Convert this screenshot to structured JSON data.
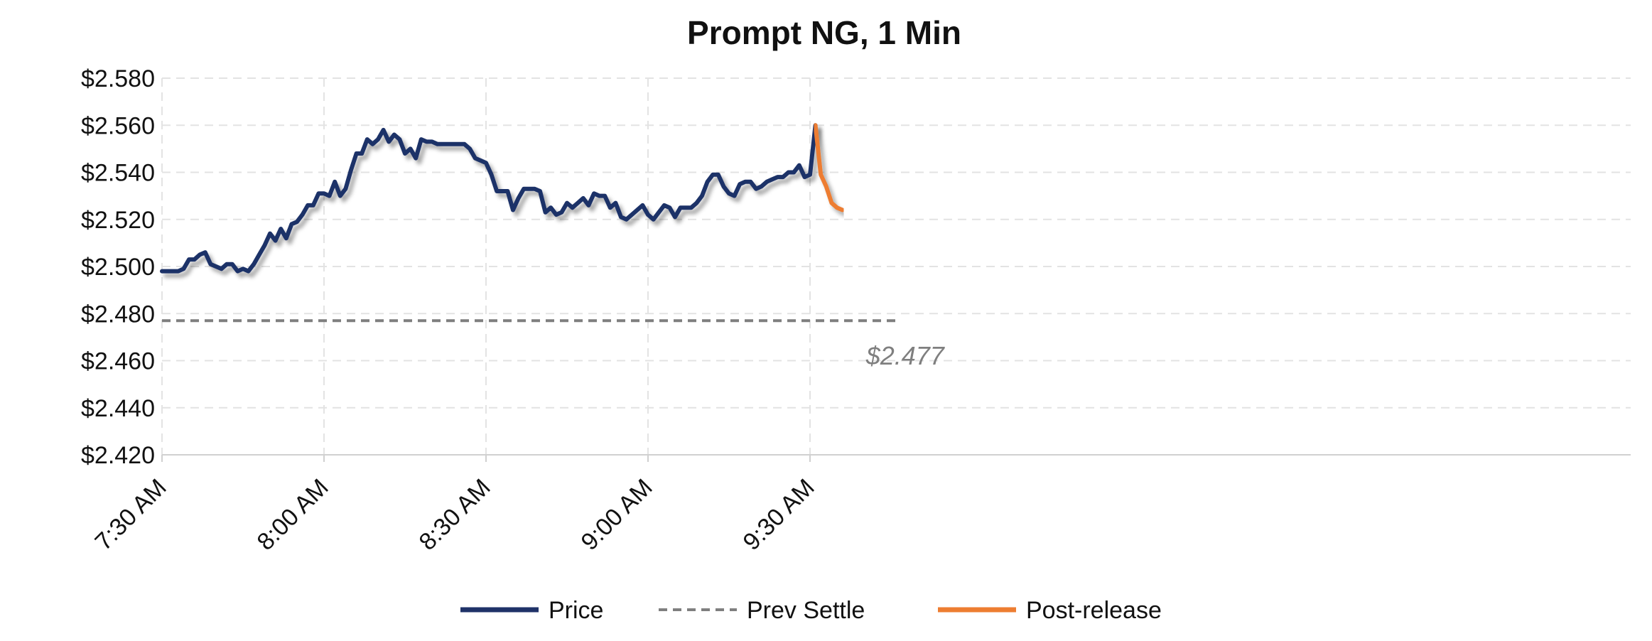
{
  "chart_data": {
    "type": "line",
    "title": "Prompt NG, 1 Min",
    "xlabel": "",
    "ylabel": "",
    "ylim": [
      2.42,
      2.58
    ],
    "xlim_minutes_from_first_tick": [
      0,
      136
    ],
    "y_ticks": [
      "$2.580",
      "$2.560",
      "$2.540",
      "$2.520",
      "$2.500",
      "$2.480",
      "$2.460",
      "$2.440",
      "$2.420"
    ],
    "y_tick_values": [
      2.58,
      2.56,
      2.54,
      2.52,
      2.5,
      2.48,
      2.46,
      2.44,
      2.42
    ],
    "x_ticks": [
      "7:30 AM",
      "8:00 AM",
      "8:30 AM",
      "9:00 AM",
      "9:30 AM"
    ],
    "x_tick_minutes": [
      0,
      30,
      60,
      90,
      120
    ],
    "grid": true,
    "legend_position": "bottom",
    "series": [
      {
        "name": "Price",
        "color": "#1f3268",
        "style": "solid",
        "x": [
          0,
          1,
          2,
          3,
          4,
          5,
          6,
          7,
          8,
          9,
          10,
          11,
          12,
          13,
          14,
          15,
          16,
          17,
          18,
          19,
          20,
          21,
          22,
          23,
          24,
          25,
          26,
          27,
          28,
          29,
          30,
          31,
          32,
          33,
          34,
          35,
          36,
          37,
          38,
          39,
          40,
          41,
          42,
          43,
          44,
          45,
          46,
          47,
          48,
          49,
          50,
          51,
          52,
          53,
          54,
          55,
          56,
          57,
          58,
          59,
          60,
          61,
          62,
          63,
          64,
          65,
          66,
          67,
          68,
          69,
          70,
          71,
          72,
          73,
          74,
          75,
          76,
          77,
          78,
          79,
          80,
          81,
          82,
          83,
          84,
          85,
          86,
          87,
          88,
          89,
          90,
          91,
          92,
          93,
          94,
          95,
          96,
          97,
          98,
          99,
          100,
          101,
          102,
          103,
          104,
          105,
          106,
          107,
          108,
          109,
          110,
          111,
          112,
          113,
          114,
          115,
          116,
          117,
          118,
          119,
          120,
          121
        ],
        "values": [
          2.498,
          2.498,
          2.498,
          2.498,
          2.499,
          2.503,
          2.503,
          2.505,
          2.506,
          2.501,
          2.5,
          2.499,
          2.501,
          2.501,
          2.498,
          2.499,
          2.498,
          2.501,
          2.505,
          2.509,
          2.514,
          2.511,
          2.516,
          2.512,
          2.518,
          2.519,
          2.522,
          2.526,
          2.526,
          2.531,
          2.531,
          2.53,
          2.536,
          2.53,
          2.533,
          2.541,
          2.548,
          2.548,
          2.554,
          2.552,
          2.554,
          2.558,
          2.553,
          2.556,
          2.554,
          2.548,
          2.55,
          2.546,
          2.554,
          2.553,
          2.553,
          2.552,
          2.552,
          2.552,
          2.552,
          2.552,
          2.552,
          2.55,
          2.546,
          2.545,
          2.544,
          2.539,
          2.532,
          2.532,
          2.532,
          2.524,
          2.529,
          2.533,
          2.533,
          2.533,
          2.532,
          2.523,
          2.525,
          2.522,
          2.523,
          2.527,
          2.525,
          2.527,
          2.529,
          2.526,
          2.531,
          2.53,
          2.53,
          2.525,
          2.527,
          2.521,
          2.52,
          2.522,
          2.524,
          2.526,
          2.522,
          2.52,
          2.523,
          2.526,
          2.525,
          2.521,
          2.525,
          2.525,
          2.525,
          2.527,
          2.53,
          2.536,
          2.539,
          2.539,
          2.534,
          2.531,
          2.53,
          2.535,
          2.536,
          2.536,
          2.533,
          2.534,
          2.536,
          2.537,
          2.538,
          2.538,
          2.54,
          2.54,
          2.543,
          2.538,
          2.539,
          2.56
        ]
      },
      {
        "name": "Prev Settle",
        "color": "#7f7f7f",
        "style": "dashed",
        "x": [
          0,
          136
        ],
        "values": [
          2.477,
          2.477
        ]
      },
      {
        "name": "Post-release",
        "color": "#ed7d31",
        "style": "solid",
        "x": [
          121,
          122,
          123,
          124,
          125,
          126
        ],
        "values": [
          2.56,
          2.539,
          2.534,
          2.527,
          2.525,
          2.524
        ]
      }
    ],
    "annotations": [
      {
        "text": "$2.477",
        "x": 133,
        "y": 2.477
      }
    ]
  }
}
